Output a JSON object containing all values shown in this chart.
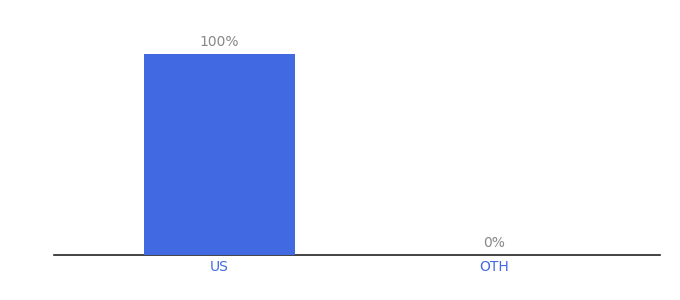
{
  "categories": [
    "US",
    "OTH"
  ],
  "values": [
    100,
    0
  ],
  "bar_color": "#4169e1",
  "label_texts": [
    "100%",
    "0%"
  ],
  "ylim": [
    0,
    115
  ],
  "background_color": "#ffffff",
  "label_fontsize": 10,
  "tick_fontsize": 10,
  "tick_color": "#4169e1",
  "bar_width": 0.55,
  "label_color": "#888888",
  "figsize": [
    6.8,
    3.0
  ],
  "dpi": 100
}
